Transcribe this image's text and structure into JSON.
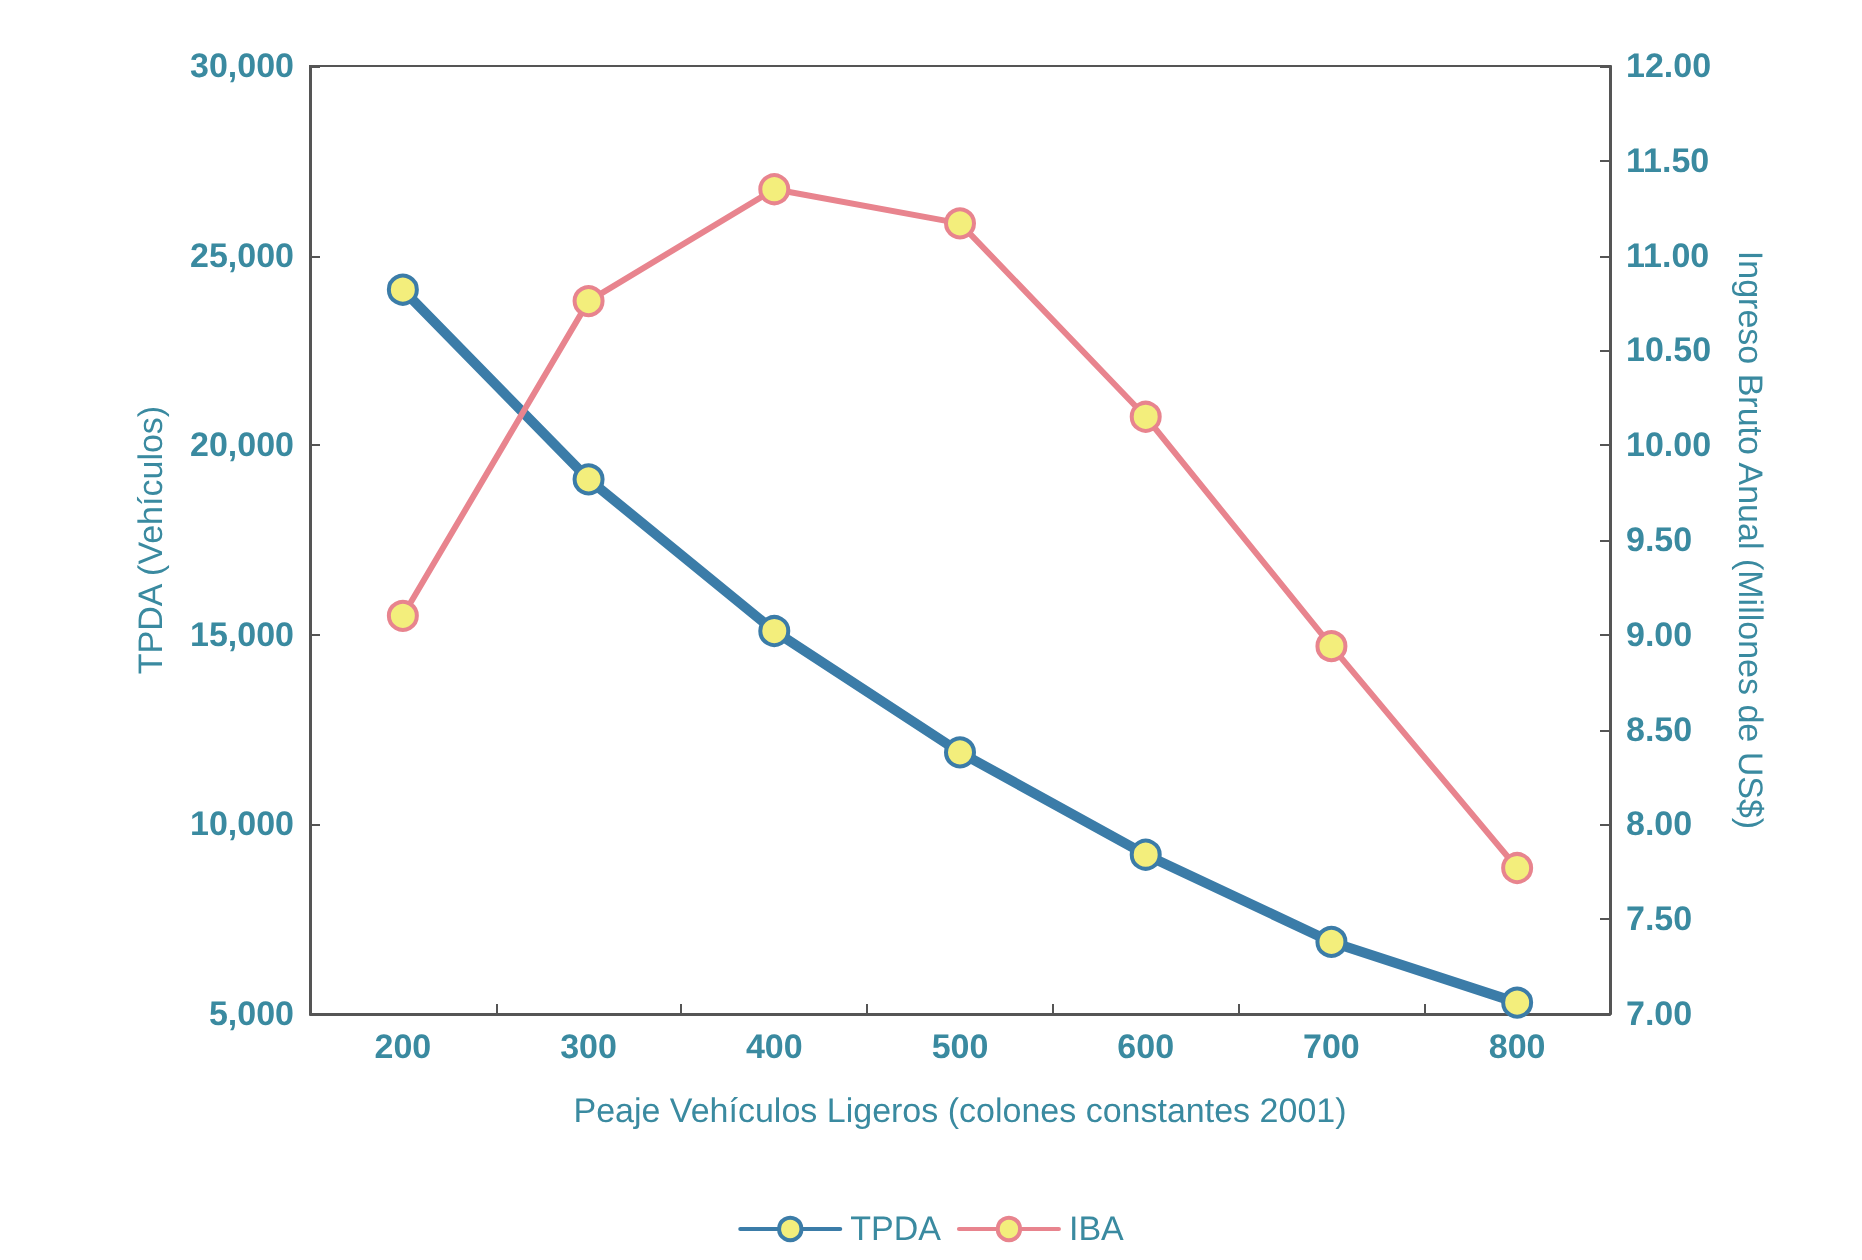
{
  "chart_data": {
    "type": "line",
    "xlabel": "Peaje Vehículos Ligeros (colones constantes 2001)",
    "ylabel": "TPDA (Vehículos)",
    "y2label": "Ingreso Bruto Anual (Millones de US$)",
    "categories": [
      "200",
      "300",
      "400",
      "500",
      "600",
      "700",
      "800"
    ],
    "series": [
      {
        "name": "TPDA",
        "color": "#3b7ca8",
        "values": [
          24100,
          19100,
          15100,
          11900,
          9200,
          6900,
          5300
        ]
      },
      {
        "name": "IBA",
        "color": "#e8848e",
        "axis": "y2",
        "values": [
          9.1,
          10.76,
          11.35,
          11.17,
          10.15,
          8.94,
          7.77
        ]
      }
    ],
    "ylim": [
      5000,
      30000
    ],
    "yticks": [
      {
        "value": 5000,
        "label": "5,000"
      },
      {
        "value": 10000,
        "label": "10,000"
      },
      {
        "value": 15000,
        "label": "15,000"
      },
      {
        "value": 20000,
        "label": "20,000"
      },
      {
        "value": 25000,
        "label": "25,000"
      },
      {
        "value": 30000,
        "label": "30,000"
      }
    ],
    "y2lim": [
      7,
      12
    ],
    "y2ticks": [
      {
        "value": 7,
        "label": "7.00"
      },
      {
        "value": 7.5,
        "label": "7.50"
      },
      {
        "value": 8,
        "label": "8.00"
      },
      {
        "value": 8.5,
        "label": "8.50"
      },
      {
        "value": 9,
        "label": "9.00"
      },
      {
        "value": 9.5,
        "label": "9.50"
      },
      {
        "value": 10,
        "label": "10.00"
      },
      {
        "value": 10.5,
        "label": "10.50"
      },
      {
        "value": 11,
        "label": "11.00"
      },
      {
        "value": 11.5,
        "label": "11.50"
      },
      {
        "value": 12,
        "label": "12.00"
      }
    ],
    "grid": false,
    "legend": "bottom",
    "marker": "circle",
    "line_style": "solid"
  }
}
